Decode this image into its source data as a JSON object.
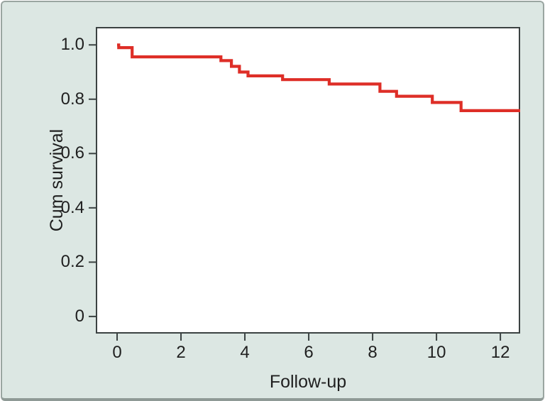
{
  "figure": {
    "kind": "kaplan-meier-survival-plot"
  },
  "colors": {
    "curve": "#de2e27",
    "background": "#dce7e3",
    "plot_background": "#ffffff",
    "plot_border": "#3b4242",
    "tick": "#3b4242",
    "text": "#1f1f1f",
    "frame_border": "#9aa5a1"
  },
  "chart_data": {
    "type": "line",
    "subtype": "step-survival-curve",
    "title": "",
    "xlabel": "Follow-up",
    "ylabel": "Cum survival",
    "legend": null,
    "grid": false,
    "xlim": [
      -0.667,
      12.62
    ],
    "ylim": [
      -0.063,
      1.066
    ],
    "x_ticks": [
      {
        "label": "0",
        "value": 0
      },
      {
        "label": "2",
        "value": 2
      },
      {
        "label": "4",
        "value": 4
      },
      {
        "label": "6",
        "value": 6
      },
      {
        "label": "8",
        "value": 8
      },
      {
        "label": "10",
        "value": 10
      },
      {
        "label": "12",
        "value": 12
      }
    ],
    "y_ticks": [
      {
        "label": "1.0",
        "value": 1.0
      },
      {
        "label": "0.8",
        "value": 0.8
      },
      {
        "label": "0.6",
        "value": 0.6
      },
      {
        "label": "0.4",
        "value": 0.4
      },
      {
        "label": "0.2",
        "value": 0.2
      },
      {
        "label": "0",
        "value": 0.0
      }
    ],
    "series": [
      {
        "name": "Cum survival",
        "color": "#de2e27",
        "step_points": [
          {
            "t": 0.0,
            "s": 1.0
          },
          {
            "t": 0.05,
            "s": 0.99
          },
          {
            "t": 0.47,
            "s": 0.956
          },
          {
            "t": 3.25,
            "s": 0.942
          },
          {
            "t": 3.58,
            "s": 0.921
          },
          {
            "t": 3.83,
            "s": 0.9
          },
          {
            "t": 4.1,
            "s": 0.886
          },
          {
            "t": 5.18,
            "s": 0.872
          },
          {
            "t": 6.64,
            "s": 0.856
          },
          {
            "t": 8.23,
            "s": 0.829
          },
          {
            "t": 8.75,
            "s": 0.811
          },
          {
            "t": 9.87,
            "s": 0.788
          },
          {
            "t": 10.77,
            "s": 0.758
          }
        ],
        "t_end": 12.62
      }
    ]
  }
}
